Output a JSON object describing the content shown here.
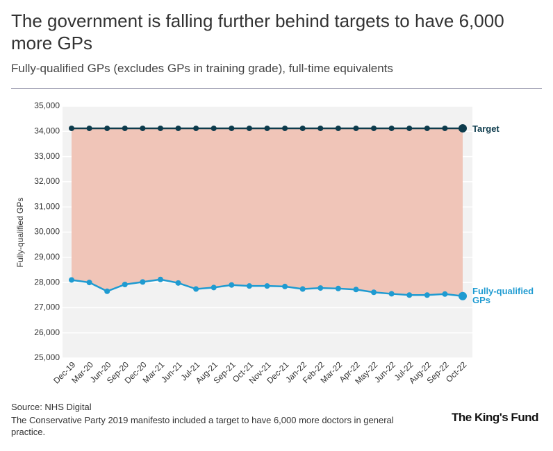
{
  "header": {
    "title": "The government is falling further behind targets to have 6,000 more GPs",
    "subtitle": "Fully-qualified GPs (excludes GPs in training grade), full-time equivalents"
  },
  "chart_data": {
    "type": "line",
    "y_label": "Fully-qualified GPs",
    "categories": [
      "Dec-19",
      "Mar-20",
      "Jun-20",
      "Sep-20",
      "Dec-20",
      "Mar-21",
      "Jun-21",
      "Jul-21",
      "Aug-21",
      "Sep-21",
      "Oct-21",
      "Nov-21",
      "Dec-21",
      "Jan-22",
      "Feb-22",
      "Mar-22",
      "Apr-22",
      "May-22",
      "Jun-22",
      "Jul-22",
      "Aug-22",
      "Sep-22",
      "Oct-22"
    ],
    "series": [
      {
        "name": "Target",
        "color": "#0d3b4c",
        "values": [
          34120,
          34120,
          34120,
          34120,
          34120,
          34120,
          34120,
          34120,
          34120,
          34120,
          34120,
          34120,
          34120,
          34120,
          34120,
          34120,
          34120,
          34120,
          34120,
          34120,
          34120,
          34120,
          34120
        ]
      },
      {
        "name": "Fully-qualified GPs",
        "color": "#1f9bd1",
        "values": [
          28100,
          28000,
          27650,
          27920,
          28020,
          28120,
          27980,
          27740,
          27800,
          27900,
          27860,
          27860,
          27840,
          27740,
          27780,
          27760,
          27720,
          27610,
          27550,
          27500,
          27500,
          27540,
          27460
        ]
      }
    ],
    "fill_color": "#f0c5b8",
    "ylim": [
      25000,
      35000
    ],
    "yticks": [
      {
        "value": 25000,
        "label": "25,000"
      },
      {
        "value": 26000,
        "label": "26,000"
      },
      {
        "value": 27000,
        "label": "27,000"
      },
      {
        "value": 28000,
        "label": "28,000"
      },
      {
        "value": 29000,
        "label": "29,000"
      },
      {
        "value": 30000,
        "label": "30,000"
      },
      {
        "value": 31000,
        "label": "31,000"
      },
      {
        "value": 32000,
        "label": "32,000"
      },
      {
        "value": 33000,
        "label": "33,000"
      },
      {
        "value": 34000,
        "label": "34,000"
      },
      {
        "value": 35000,
        "label": "35,000"
      }
    ],
    "grid": true
  },
  "footer": {
    "source": "Source: NHS Digital",
    "note": "The Conservative Party 2019 manifesto included a target to have 6,000 more doctors in general practice.",
    "logo": "The King's Fund"
  }
}
